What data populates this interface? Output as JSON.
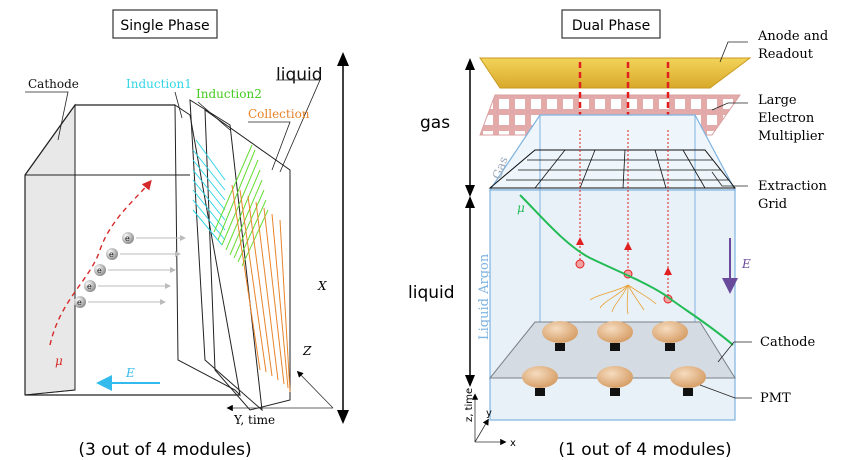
{
  "single": {
    "title": "Single Phase",
    "labels": {
      "cathode": "Cathode",
      "induction1": "Induction1",
      "induction2": "Induction2",
      "collection": "Collection",
      "liquid": "liquid",
      "x_axis": "X",
      "z_axis": "Z",
      "y_axis": "Y, time",
      "mu": "μ",
      "efield": "E",
      "electron": "e"
    },
    "caption": "(3 out of 4 modules)",
    "colors": {
      "induction1": "#33d6e6",
      "induction2": "#66dd33",
      "collection": "#e8842a",
      "muon": "#d62a2a",
      "efield": "#33bbee"
    }
  },
  "dual": {
    "title": "Dual Phase",
    "labels": {
      "anode1": "Anode and",
      "anode2": "Readout",
      "lem1": "Large",
      "lem2": "Electron",
      "lem3": "Multiplier",
      "grid1": "Extraction",
      "grid2": "Grid",
      "cathode": "Cathode",
      "pmt": "PMT",
      "gas_region": "gas",
      "liquid_region": "liquid",
      "gas_side": "Gas",
      "liquid_argon_side": "Liquid Argon",
      "efield": "E",
      "mu": "μ",
      "axis_x": "x",
      "axis_y": "y",
      "axis_z": "z, time"
    },
    "caption": "(1 out of 4 modules)",
    "colors": {
      "anode": "#e8c03a",
      "lem": "#e0a8a8",
      "track": "#22bb55",
      "drift": "#e02020",
      "box": "#7fb3e0",
      "efield": "#6a4a9a"
    }
  }
}
